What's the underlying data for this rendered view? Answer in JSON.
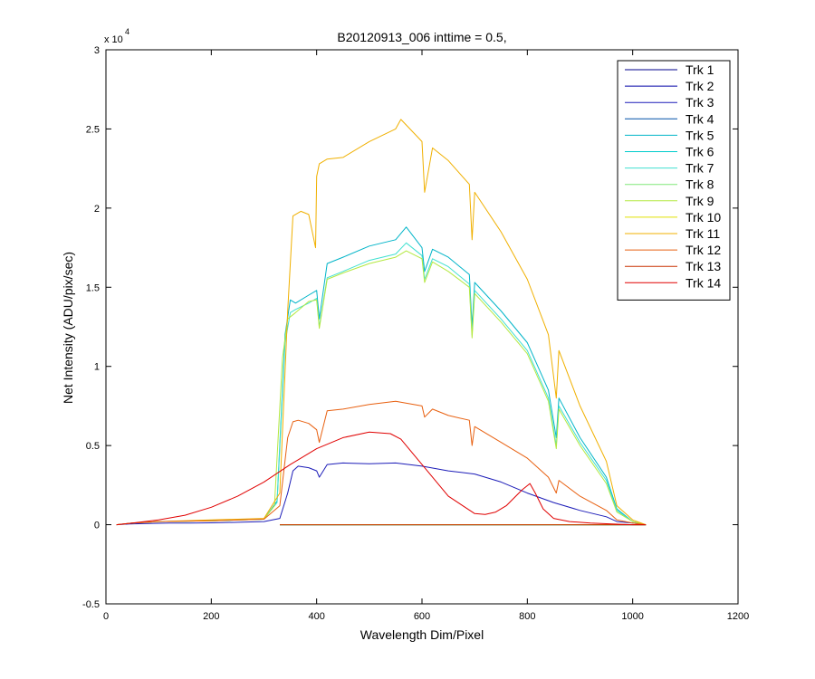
{
  "chart_data": {
    "type": "line",
    "title": "B20120913_006 inttime = 0.5,",
    "xlabel": "Wavelength Dim/Pixel",
    "ylabel": "Net Intensity (ADU/pix/sec)",
    "y_multiplier_base": "x 10",
    "y_multiplier_exp": "4",
    "xlim": [
      0,
      1200
    ],
    "ylim": [
      -5000,
      30000
    ],
    "x_ticks": [
      0,
      200,
      400,
      600,
      800,
      1000,
      1200
    ],
    "x_tick_labels": [
      "0",
      "200",
      "400",
      "600",
      "800",
      "1000",
      "1200"
    ],
    "y_ticks": [
      -5000,
      0,
      5000,
      10000,
      15000,
      20000,
      25000,
      30000
    ],
    "y_tick_labels": [
      "-0.5",
      "0",
      "0.5",
      "1",
      "1.5",
      "2",
      "2.5",
      "3"
    ],
    "grid": false,
    "legend_position": "top-right",
    "series": [
      {
        "name": "Trk 1",
        "color": "#00008B",
        "x": [
          330,
          1025
        ],
        "y": [
          0,
          0
        ]
      },
      {
        "name": "Trk 2",
        "color": "#0000A8",
        "x": [
          330,
          1025
        ],
        "y": [
          0,
          0
        ]
      },
      {
        "name": "Trk 3",
        "color": "#1C1CB8",
        "x": [
          20,
          45,
          80,
          120,
          160,
          200,
          250,
          300,
          330,
          345,
          355,
          365,
          385,
          400,
          405,
          420,
          450,
          500,
          550,
          600,
          650,
          700,
          750,
          800,
          850,
          900,
          950,
          970,
          1000,
          1025
        ],
        "y": [
          0,
          50,
          80,
          100,
          100,
          120,
          150,
          200,
          400,
          2000,
          3400,
          3700,
          3600,
          3400,
          3000,
          3800,
          3900,
          3850,
          3900,
          3700,
          3400,
          3200,
          2700,
          2000,
          1400,
          900,
          500,
          200,
          100,
          0
        ]
      },
      {
        "name": "Trk 4",
        "color": "#0050A8",
        "x": [
          330,
          1025
        ],
        "y": [
          0,
          0
        ]
      },
      {
        "name": "Trk 5",
        "color": "#00B4C8",
        "x": [
          20,
          50,
          100,
          200,
          300,
          325,
          340,
          350,
          360,
          385,
          400,
          405,
          420,
          450,
          500,
          550,
          570,
          600,
          605,
          620,
          650,
          690,
          695,
          700,
          750,
          800,
          840,
          855,
          860,
          900,
          950,
          970,
          1000,
          1025
        ],
        "y": [
          0,
          100,
          200,
          250,
          350,
          1500,
          12000,
          14200,
          14000,
          14500,
          14800,
          13000,
          16500,
          16900,
          17600,
          18000,
          18800,
          17500,
          16000,
          17400,
          16900,
          15800,
          12500,
          15300,
          13500,
          11500,
          8500,
          5500,
          8000,
          5500,
          3000,
          1000,
          200,
          0
        ]
      },
      {
        "name": "Trk 6",
        "color": "#00CCCC",
        "x": [
          330,
          1025
        ],
        "y": [
          0,
          0
        ]
      },
      {
        "name": "Trk 7",
        "color": "#40E0D0",
        "x": [
          20,
          50,
          100,
          200,
          300,
          325,
          340,
          350,
          360,
          385,
          400,
          405,
          420,
          450,
          500,
          550,
          570,
          600,
          605,
          620,
          650,
          690,
          695,
          700,
          750,
          800,
          840,
          855,
          860,
          900,
          950,
          970,
          1000,
          1025
        ],
        "y": [
          0,
          100,
          200,
          250,
          350,
          1400,
          11500,
          13400,
          13600,
          14000,
          14300,
          12500,
          15600,
          16000,
          16700,
          17100,
          17800,
          17000,
          15500,
          16800,
          16300,
          15200,
          12000,
          14800,
          13000,
          11000,
          8000,
          5000,
          7500,
          5200,
          2800,
          900,
          200,
          0
        ]
      },
      {
        "name": "Trk 8",
        "color": "#80E878",
        "x": [
          330,
          1025
        ],
        "y": [
          0,
          0
        ]
      },
      {
        "name": "Trk 9",
        "color": "#B4E840",
        "x": [
          20,
          50,
          100,
          200,
          300,
          320,
          335,
          345,
          360,
          385,
          400,
          405,
          420,
          450,
          500,
          550,
          570,
          600,
          605,
          620,
          650,
          690,
          695,
          700,
          750,
          800,
          840,
          855,
          860,
          900,
          950,
          970,
          1000,
          1025
        ],
        "y": [
          0,
          100,
          200,
          250,
          350,
          1200,
          10500,
          13000,
          13400,
          14100,
          14200,
          12400,
          15500,
          15900,
          16500,
          16900,
          17300,
          16800,
          15300,
          16600,
          16000,
          15000,
          11800,
          14600,
          12800,
          10800,
          7800,
          4800,
          7300,
          5000,
          2600,
          800,
          200,
          0
        ]
      },
      {
        "name": "Trk 10",
        "color": "#E0E000",
        "x": [
          330,
          1025
        ],
        "y": [
          0,
          0
        ]
      },
      {
        "name": "Trk 11",
        "color": "#F0B000",
        "x": [
          20,
          50,
          100,
          200,
          300,
          330,
          345,
          355,
          370,
          385,
          398,
          400,
          405,
          420,
          450,
          500,
          550,
          560,
          600,
          605,
          620,
          650,
          690,
          695,
          700,
          750,
          800,
          840,
          855,
          860,
          900,
          950,
          970,
          1000,
          1025
        ],
        "y": [
          0,
          100,
          200,
          300,
          400,
          2000,
          13500,
          19500,
          19800,
          19600,
          17500,
          22000,
          22800,
          23100,
          23200,
          24200,
          25000,
          25600,
          24200,
          21000,
          23800,
          23000,
          21500,
          18000,
          21000,
          18500,
          15500,
          12000,
          8000,
          11000,
          7500,
          4000,
          1200,
          300,
          0
        ]
      },
      {
        "name": "Trk 12",
        "color": "#E86010",
        "x": [
          20,
          50,
          100,
          200,
          300,
          330,
          345,
          355,
          365,
          385,
          400,
          405,
          420,
          450,
          500,
          550,
          600,
          605,
          620,
          650,
          690,
          695,
          700,
          750,
          800,
          840,
          855,
          860,
          900,
          950,
          970,
          1000,
          1025
        ],
        "y": [
          0,
          100,
          200,
          250,
          350,
          1200,
          5500,
          6500,
          6600,
          6400,
          6000,
          5200,
          7200,
          7300,
          7600,
          7800,
          7500,
          6800,
          7300,
          6900,
          6600,
          5000,
          6200,
          5200,
          4200,
          3000,
          2000,
          2800,
          1800,
          900,
          300,
          100,
          0
        ]
      },
      {
        "name": "Trk 13",
        "color": "#C83000",
        "x": [
          330,
          1025
        ],
        "y": [
          0,
          0
        ]
      },
      {
        "name": "Trk 14",
        "color": "#E00000",
        "x": [
          20,
          50,
          100,
          150,
          200,
          250,
          300,
          350,
          400,
          450,
          500,
          540,
          560,
          600,
          650,
          700,
          720,
          740,
          760,
          790,
          805,
          815,
          830,
          850,
          880,
          920,
          960,
          1000,
          1025
        ],
        "y": [
          0,
          100,
          300,
          600,
          1100,
          1800,
          2700,
          3800,
          4800,
          5500,
          5850,
          5750,
          5400,
          3800,
          1800,
          700,
          650,
          800,
          1200,
          2200,
          2600,
          2000,
          1000,
          400,
          200,
          100,
          50,
          0,
          0
        ]
      }
    ]
  }
}
